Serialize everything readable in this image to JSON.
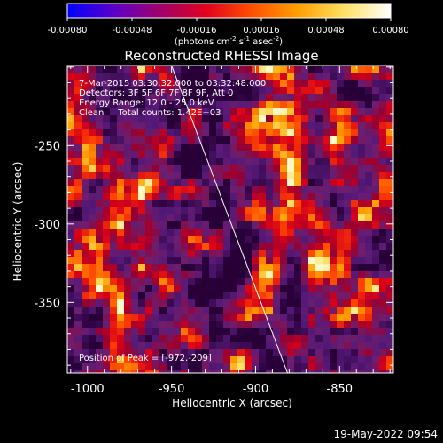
{
  "colorbar": {
    "tick_labels": [
      "-0.00080",
      "-0.00048",
      "-0.00016",
      "0.00016",
      "0.00048",
      "0.00080"
    ],
    "range": [
      -0.0008,
      0.0008
    ],
    "unit_prefix": "(photons cm",
    "unit_exp1": "-2",
    "unit_mid1": " s",
    "unit_exp2": "-1",
    "unit_mid2": " asec",
    "unit_exp3": "-2",
    "unit_suffix": ")",
    "colormap": [
      "#0000ff",
      "#5a00c8",
      "#a0006e",
      "#e1001e",
      "#ff5000",
      "#ffa000",
      "#ffe164",
      "#ffffff"
    ]
  },
  "chart_data": {
    "type": "heatmap",
    "title": "Reconstructed RHESSI Image",
    "xlabel": "Heliocentric X (arcsec)",
    "ylabel": "Heliocentric Y (arcsec)",
    "xlim": [
      -1012,
      -818
    ],
    "ylim": [
      -395,
      -199
    ],
    "xticks": [
      -1000,
      -950,
      -900,
      -850
    ],
    "xtick_labels": [
      "-1000",
      "-950",
      "-900",
      "-850"
    ],
    "yticks": [
      -250,
      -300,
      -350
    ],
    "ytick_labels": [
      "-250",
      "-300",
      "-350"
    ],
    "limb_line": [
      [
        -950,
        -199
      ],
      [
        -881,
        -395
      ]
    ],
    "annotations": [
      "7-Mar-2015 03:30:32.000 to 03:32:48.000",
      "Detectors: 3F 5F 6F 7F 8F 9F, Att 0",
      "Energy Range: 12.0 - 25.0 keV",
      "Clean     Total counts: 1.42E+03"
    ],
    "peak_label": "Position of Peak = [-972,-209]",
    "peak": [
      -972,
      -209
    ]
  },
  "timestamp": "19-May-2022 09:54"
}
